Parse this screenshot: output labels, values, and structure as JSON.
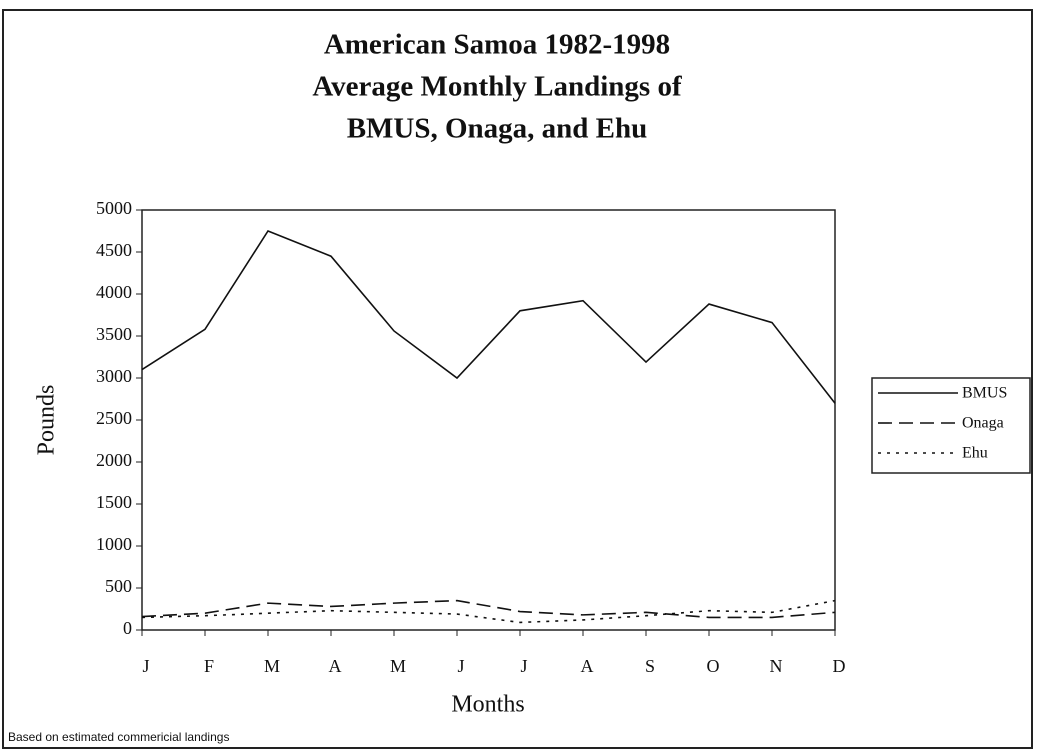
{
  "chart_data": {
    "type": "line",
    "title": [
      "American Samoa 1982-1998",
      "Average Monthly Landings of",
      "BMUS, Onaga, and Ehu"
    ],
    "x_label": "Months",
    "y_label": "Pounds",
    "footnote": "Based on estimated commericial landings",
    "categories": [
      "J",
      "F",
      "M",
      "A",
      "M",
      "J",
      "J",
      "A",
      "S",
      "O",
      "N",
      "D"
    ],
    "series": [
      {
        "name": "BMUS",
        "color": "#111111",
        "dash": "solid",
        "values": [
          3100,
          3580,
          4750,
          4450,
          3560,
          3000,
          3800,
          3920,
          3190,
          3880,
          3660,
          2700
        ]
      },
      {
        "name": "Onaga",
        "color": "#111111",
        "dash": "dashed",
        "values": [
          160,
          200,
          320,
          280,
          320,
          350,
          220,
          180,
          210,
          150,
          150,
          210
        ]
      },
      {
        "name": "Ehu",
        "color": "#111111",
        "dash": "dotted",
        "values": [
          150,
          170,
          200,
          230,
          210,
          190,
          90,
          120,
          170,
          230,
          210,
          350
        ]
      }
    ],
    "ylim": [
      0,
      5000
    ],
    "yticks": [
      0,
      500,
      1000,
      1500,
      2000,
      2500,
      3000,
      3500,
      4000,
      4500,
      5000
    ],
    "legend": "right"
  }
}
